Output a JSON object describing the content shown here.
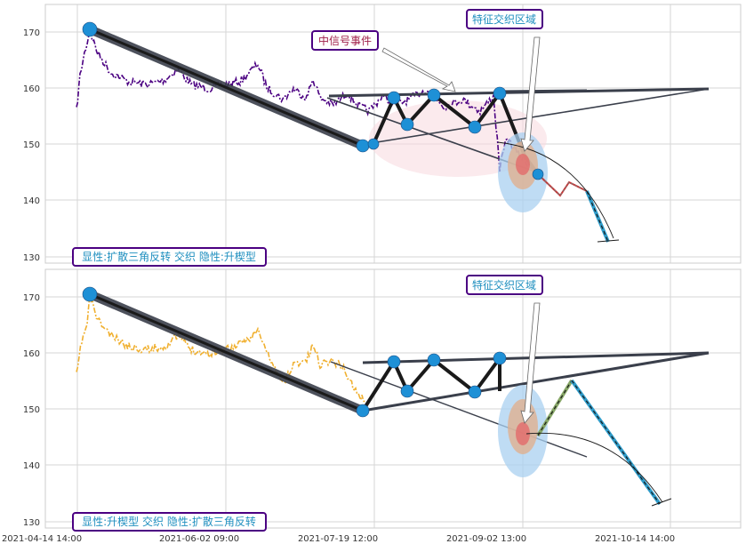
{
  "chart_data": {
    "type": "line",
    "x_ticks": [
      "2021-04-14 14:00",
      "2021-06-02 09:00",
      "2021-07-19 12:00",
      "2021-09-02 13:00",
      "2021-10-14 14:00"
    ],
    "ylim": [
      129,
      175
    ],
    "grid": true,
    "colors": {
      "top_price": "#4b0082",
      "bottom_price": "#f0b030",
      "marker": "#1e90d6",
      "trendline": "#3a3f4b",
      "zigzag": "#1a1a1a",
      "box_border": "#4b0082",
      "box_text": "#1f8fbf",
      "annotation_text": "#a0204a",
      "ellipse_outer": "#a9d0f0",
      "ellipse_mid": "#e8b89a",
      "ellipse_inner": "#e58a8a",
      "pattern_fill": "#f7d9de",
      "projection": "#2d9bc9"
    },
    "panels": [
      {
        "y_ticks": [
          "170",
          "160",
          "150",
          "140",
          "130"
        ],
        "labels": {
          "bottom_box": "显性:扩散三角反转 交织 隐性:升楔型",
          "top_box": "特征交织区域",
          "event_box": "中信号事件"
        }
      },
      {
        "y_ticks": [
          "170",
          "160",
          "150",
          "140",
          "130"
        ],
        "labels": {
          "bottom_box": "显性:升楔型 交织 隐性:扩散三角反转",
          "top_box": "特征交织区域"
        }
      }
    ]
  }
}
